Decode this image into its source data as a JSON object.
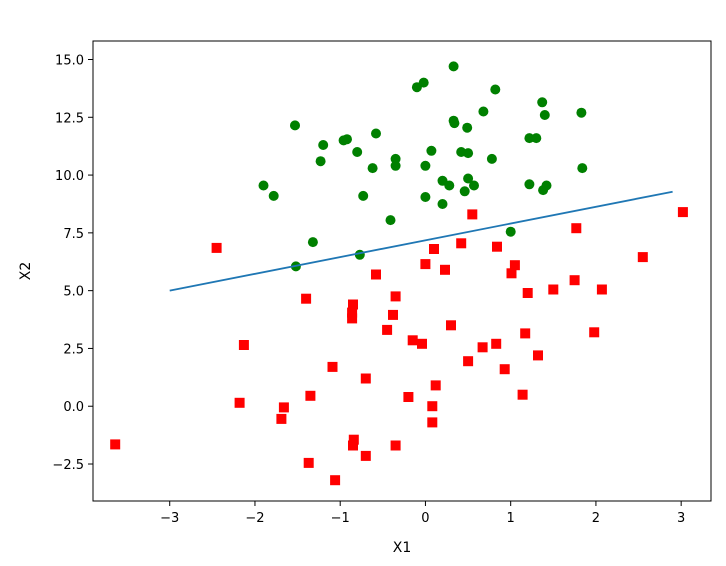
{
  "chart_data": {
    "type": "scatter",
    "xlabel": "X1",
    "ylabel": "X2",
    "xlim": [
      -3.9,
      3.35
    ],
    "ylim": [
      -4.1,
      15.8
    ],
    "xticks": [
      -3,
      -2,
      -1,
      0,
      1,
      2,
      3
    ],
    "yticks": [
      -2.5,
      0.0,
      2.5,
      5.0,
      7.5,
      10.0,
      12.5,
      15.0
    ],
    "xtick_labels": [
      "−3",
      "−2",
      "−1",
      "0",
      "1",
      "2",
      "3"
    ],
    "ytick_labels": [
      "−2.5",
      "0.0",
      "2.5",
      "5.0",
      "7.5",
      "10.0",
      "12.5",
      "15.0"
    ],
    "grid": false,
    "legend": "none",
    "series": [
      {
        "marker": "circle",
        "color": "#008000",
        "points": [
          [
            0.33,
            14.7
          ],
          [
            -0.1,
            13.8
          ],
          [
            -0.02,
            14.0
          ],
          [
            0.82,
            13.7
          ],
          [
            1.37,
            13.15
          ],
          [
            0.68,
            12.75
          ],
          [
            1.83,
            12.7
          ],
          [
            1.4,
            12.6
          ],
          [
            0.33,
            12.35
          ],
          [
            0.34,
            12.25
          ],
          [
            0.49,
            12.05
          ],
          [
            -1.53,
            12.15
          ],
          [
            -0.96,
            11.5
          ],
          [
            -0.92,
            11.55
          ],
          [
            -0.58,
            11.8
          ],
          [
            1.22,
            11.6
          ],
          [
            1.3,
            11.6
          ],
          [
            -1.2,
            11.3
          ],
          [
            -0.8,
            11.0
          ],
          [
            0.07,
            11.05
          ],
          [
            0.42,
            11.0
          ],
          [
            0.5,
            10.95
          ],
          [
            -0.35,
            10.7
          ],
          [
            -1.23,
            10.6
          ],
          [
            0.78,
            10.7
          ],
          [
            -0.62,
            10.3
          ],
          [
            -0.35,
            10.4
          ],
          [
            0.0,
            10.4
          ],
          [
            1.84,
            10.3
          ],
          [
            0.2,
            9.75
          ],
          [
            0.5,
            9.85
          ],
          [
            0.28,
            9.55
          ],
          [
            0.57,
            9.55
          ],
          [
            1.22,
            9.6
          ],
          [
            1.42,
            9.55
          ],
          [
            1.38,
            9.35
          ],
          [
            0.46,
            9.3
          ],
          [
            -1.9,
            9.55
          ],
          [
            -1.78,
            9.1
          ],
          [
            -0.73,
            9.1
          ],
          [
            0.0,
            9.05
          ],
          [
            0.2,
            8.75
          ],
          [
            -0.41,
            8.05
          ],
          [
            1.0,
            7.55
          ],
          [
            -1.32,
            7.1
          ],
          [
            -0.77,
            6.55
          ],
          [
            -1.52,
            6.05
          ]
        ]
      },
      {
        "marker": "square",
        "color": "#ff0000",
        "points": [
          [
            0.55,
            8.3
          ],
          [
            3.02,
            8.4
          ],
          [
            1.77,
            7.7
          ],
          [
            0.42,
            7.05
          ],
          [
            0.84,
            6.9
          ],
          [
            -2.45,
            6.85
          ],
          [
            0.1,
            6.8
          ],
          [
            2.55,
            6.45
          ],
          [
            0.0,
            6.15
          ],
          [
            1.05,
            6.1
          ],
          [
            0.23,
            5.9
          ],
          [
            1.01,
            5.75
          ],
          [
            -0.58,
            5.7
          ],
          [
            1.75,
            5.45
          ],
          [
            2.07,
            5.05
          ],
          [
            1.5,
            5.05
          ],
          [
            1.2,
            4.9
          ],
          [
            -0.35,
            4.75
          ],
          [
            -1.4,
            4.65
          ],
          [
            -0.85,
            4.4
          ],
          [
            -0.86,
            4.05
          ],
          [
            -0.86,
            3.8
          ],
          [
            -0.38,
            3.95
          ],
          [
            0.3,
            3.5
          ],
          [
            -0.45,
            3.3
          ],
          [
            1.98,
            3.2
          ],
          [
            1.17,
            3.15
          ],
          [
            -0.15,
            2.85
          ],
          [
            -0.04,
            2.7
          ],
          [
            0.83,
            2.7
          ],
          [
            -2.13,
            2.65
          ],
          [
            0.67,
            2.55
          ],
          [
            1.32,
            2.2
          ],
          [
            0.5,
            1.95
          ],
          [
            -1.09,
            1.7
          ],
          [
            0.93,
            1.6
          ],
          [
            -0.7,
            1.2
          ],
          [
            0.12,
            0.9
          ],
          [
            -1.35,
            0.45
          ],
          [
            -0.2,
            0.4
          ],
          [
            1.14,
            0.5
          ],
          [
            -2.18,
            0.15
          ],
          [
            -1.66,
            -0.05
          ],
          [
            0.08,
            0.0
          ],
          [
            -1.69,
            -0.55
          ],
          [
            0.08,
            -0.7
          ],
          [
            -0.84,
            -1.45
          ],
          [
            -0.85,
            -1.7
          ],
          [
            -0.35,
            -1.7
          ],
          [
            -3.64,
            -1.65
          ],
          [
            -0.7,
            -2.15
          ],
          [
            -1.37,
            -2.45
          ],
          [
            -1.06,
            -3.2
          ]
        ]
      },
      {
        "type": "line",
        "color": "#1f77b4",
        "points": [
          [
            -3.0,
            5.0
          ],
          [
            2.9,
            9.28
          ]
        ]
      }
    ]
  }
}
